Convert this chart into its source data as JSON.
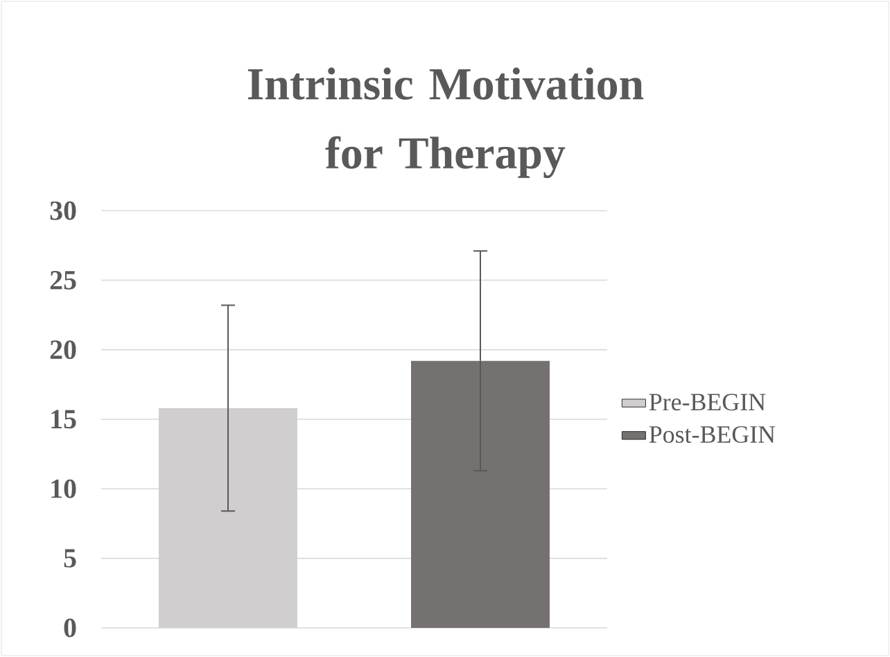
{
  "chart_data": {
    "type": "bar",
    "title": "Intrinsic Motivation for Therapy",
    "categories": [
      null
    ],
    "series": [
      {
        "name": "Pre-BEGIN",
        "color": "#d0cece",
        "values": [
          15.8
        ],
        "errors": [
          7.4
        ]
      },
      {
        "name": "Post-BEGIN",
        "color": "#767171",
        "values": [
          19.2
        ],
        "errors": [
          7.9
        ]
      }
    ],
    "ylim": [
      0,
      30
    ],
    "yticks": [
      0,
      5,
      10,
      15,
      20,
      25,
      30
    ],
    "grid": "y",
    "legend": "right"
  }
}
